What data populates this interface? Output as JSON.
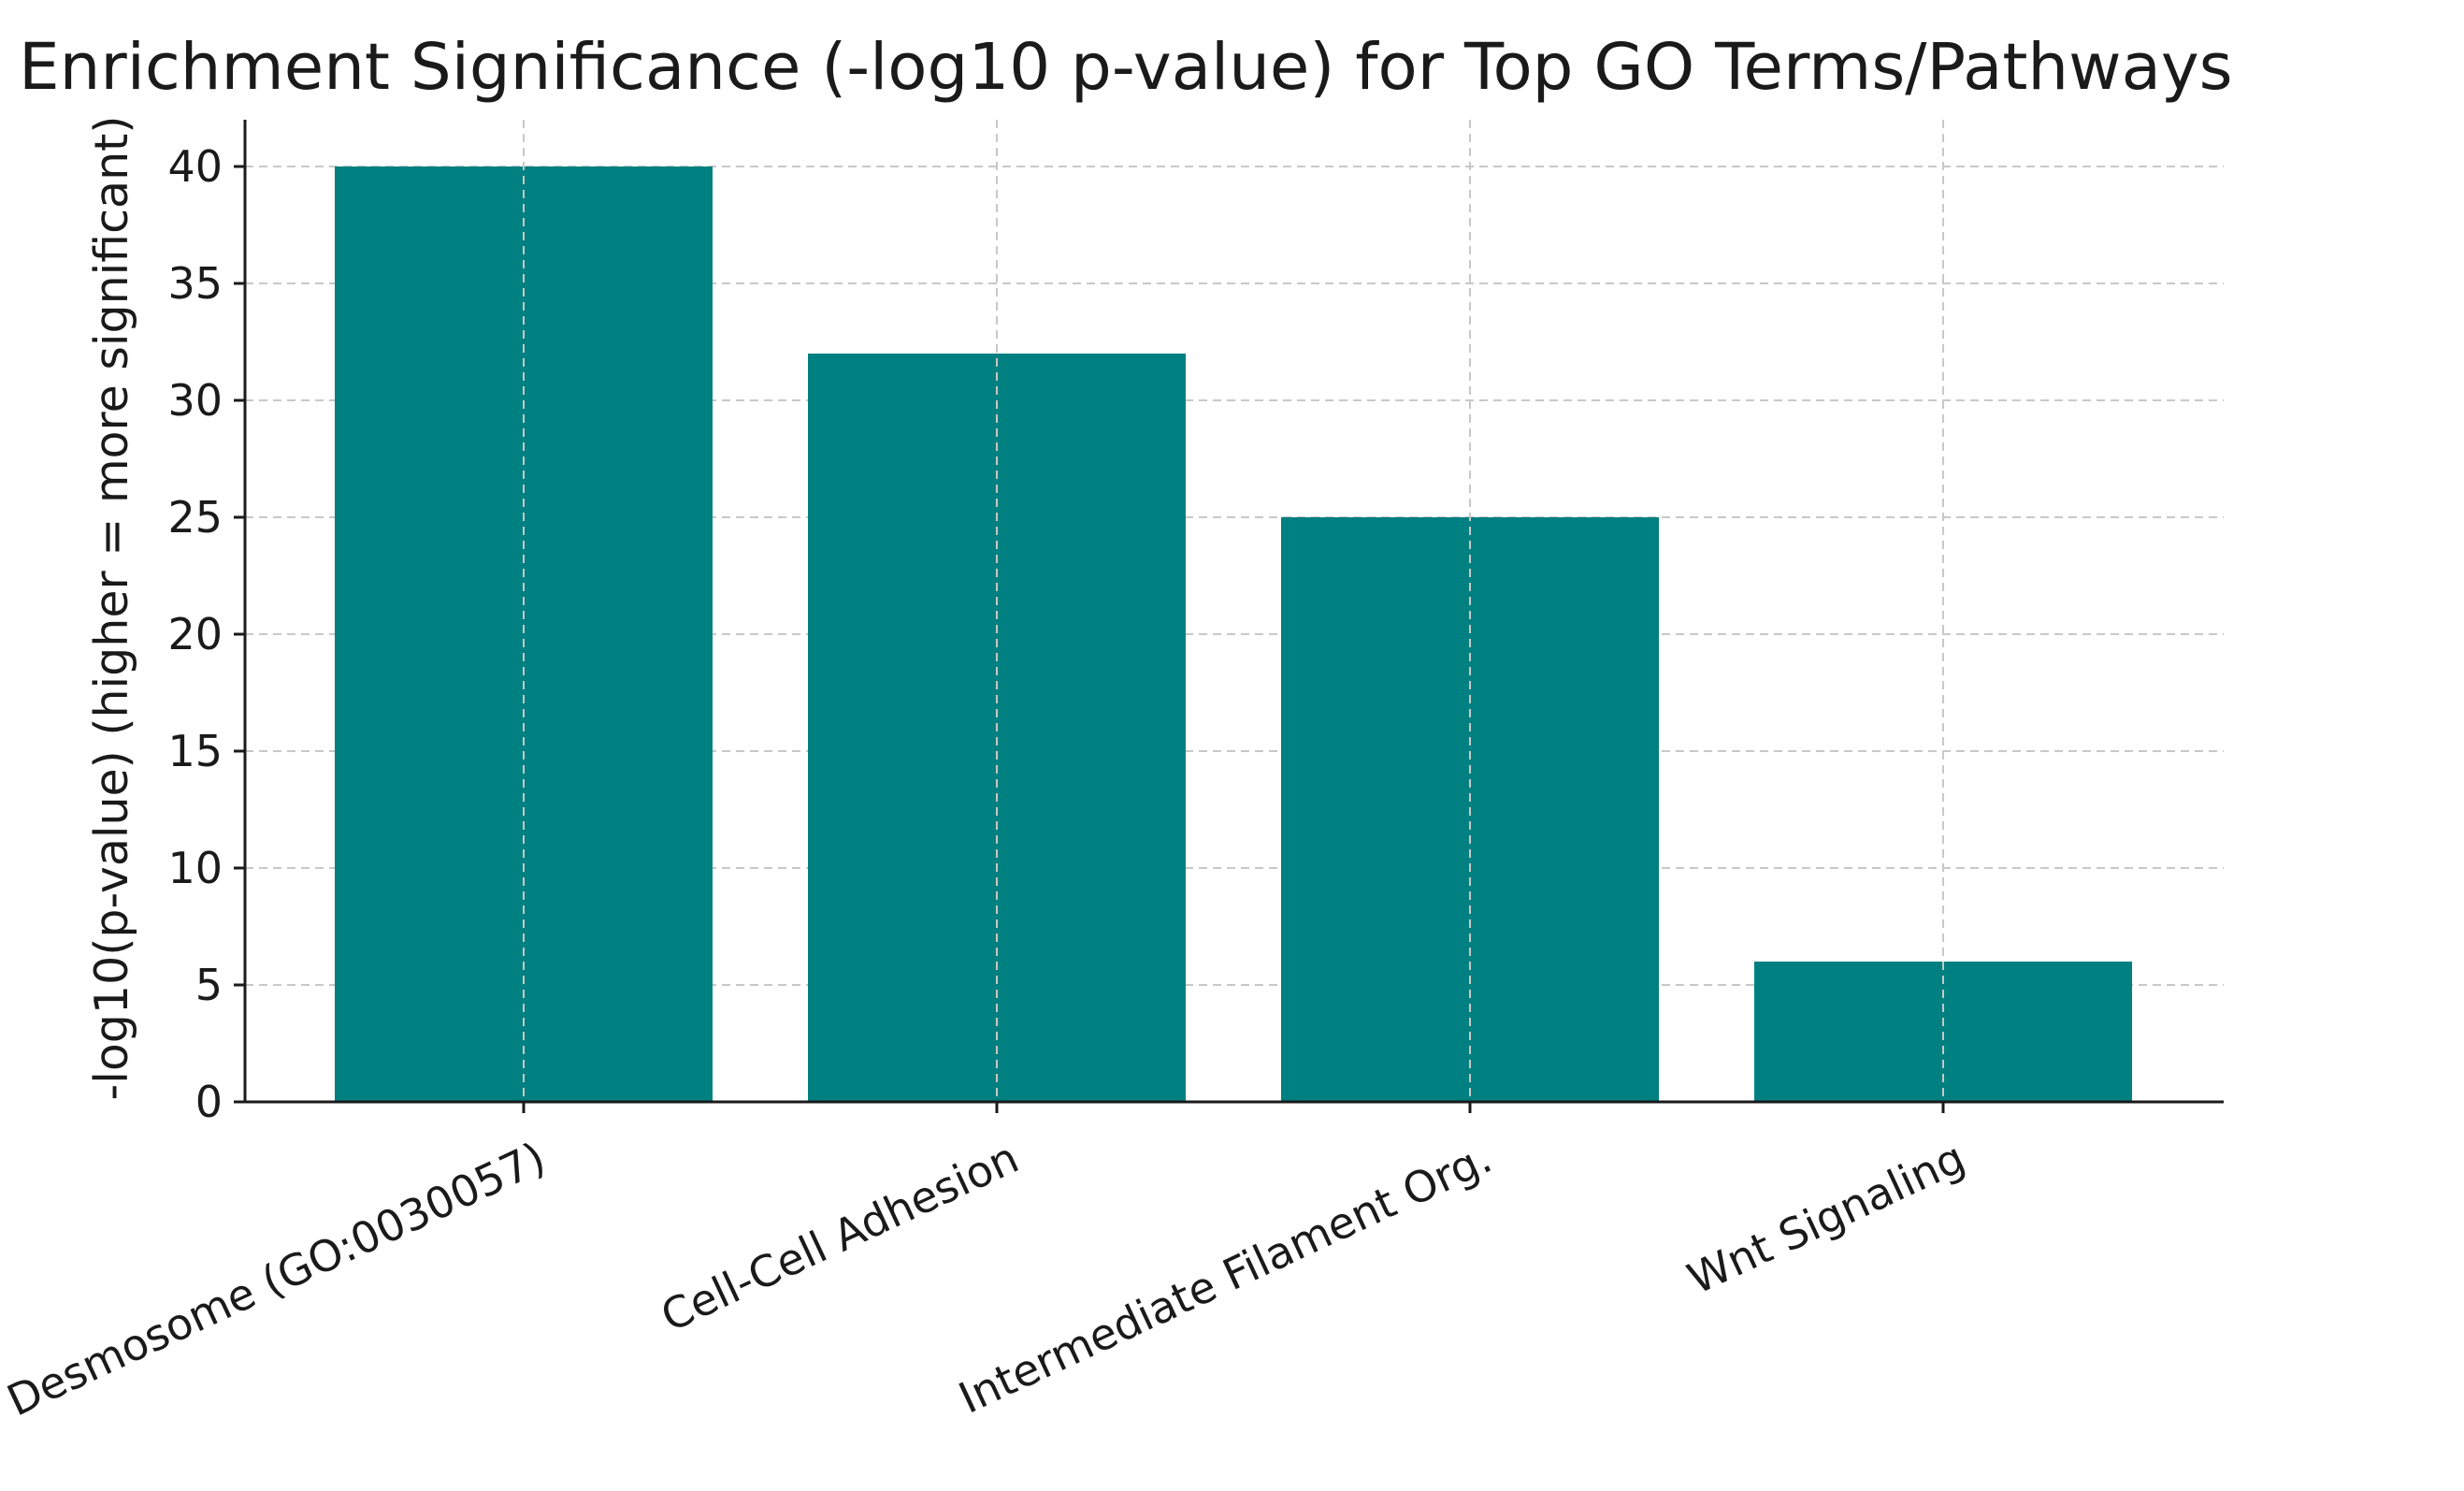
{
  "chart_data": {
    "type": "bar",
    "title": "Enrichment Significance (-log10 p-value) for Top GO Terms/Pathways",
    "xlabel": "",
    "ylabel": "-log10(p-value) (higher = more significant)",
    "categories": [
      "Desmosome (GO:0030057)",
      "Cell-Cell Adhesion",
      "Intermediate Filament Org.",
      "Wnt Signaling"
    ],
    "values": [
      40,
      32,
      25,
      6
    ],
    "ylim": [
      0,
      42
    ],
    "yticks": [
      0,
      5,
      10,
      15,
      20,
      25,
      30,
      35,
      40
    ],
    "grid": true,
    "bar_color": "#008080"
  }
}
